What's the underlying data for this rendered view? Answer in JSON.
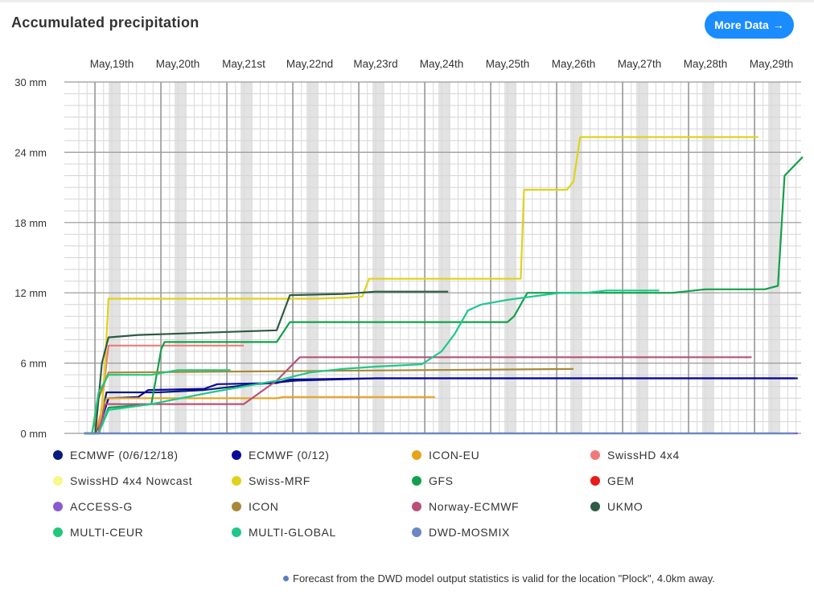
{
  "header": {
    "title": "Accumulated precipitation",
    "more_label": "More Data",
    "more_icon": "arrow-right-icon"
  },
  "footnote": {
    "text": "Forecast from the DWD model output statistics is valid for the location \"Plock\", 4.0km away.",
    "dot_color": "#5b7fbd"
  },
  "chart_data": {
    "type": "line",
    "title": "Accumulated precipitation",
    "xlabel": "",
    "ylabel": "",
    "x_unit": "days",
    "x_range": [
      -0.5,
      10.4
    ],
    "ylim": [
      0,
      30
    ],
    "y_ticks": [
      0,
      6,
      12,
      18,
      24,
      30
    ],
    "y_tick_labels": [
      "0 mm",
      "6 mm",
      "12 mm",
      "18 mm",
      "24 mm",
      "30 mm"
    ],
    "x_tick_labels": [
      "May,19th",
      "May,20th",
      "May,21st",
      "May,22nd",
      "May,23rd",
      "May,24th",
      "May,25th",
      "May,26th",
      "May,27th",
      "May,28th",
      "May,29th"
    ],
    "grid": true,
    "legend_position": "bottom",
    "series": [
      {
        "name": "ECMWF (0/6/12/18)",
        "color": "#0a1a7a",
        "points": [
          [
            -0.42,
            0
          ],
          [
            -0.2,
            0
          ],
          [
            -0.15,
            1.5
          ],
          [
            -0.08,
            3.5
          ],
          [
            0.7,
            3.5
          ],
          [
            1.4,
            3.7
          ],
          [
            2.0,
            4.1
          ],
          [
            2.8,
            4.5
          ],
          [
            4.0,
            4.7
          ],
          [
            10.4,
            4.7
          ]
        ]
      },
      {
        "name": "ECMWF (0/12)",
        "color": "#0a0a9a",
        "points": [
          [
            -0.42,
            0
          ],
          [
            -0.25,
            0
          ],
          [
            -0.15,
            1.2
          ],
          [
            -0.05,
            3.0
          ],
          [
            0.4,
            3.1
          ],
          [
            0.55,
            3.7
          ],
          [
            1.4,
            3.8
          ],
          [
            1.6,
            4.2
          ],
          [
            2.5,
            4.3
          ],
          [
            2.7,
            4.6
          ],
          [
            4.0,
            4.7
          ],
          [
            10.35,
            4.7
          ]
        ]
      },
      {
        "name": "ICON-EU",
        "color": "#e8a31c",
        "points": [
          [
            -0.42,
            0
          ],
          [
            -0.25,
            0
          ],
          [
            -0.15,
            2.0
          ],
          [
            -0.08,
            3.0
          ],
          [
            2.5,
            3.0
          ],
          [
            2.6,
            3.1
          ],
          [
            4.9,
            3.1
          ]
        ]
      },
      {
        "name": "SwissHD 4x4",
        "color": "#f07a78",
        "points": [
          [
            -0.42,
            0
          ],
          [
            -0.2,
            0
          ],
          [
            -0.12,
            4.0
          ],
          [
            -0.05,
            7.5
          ],
          [
            2.0,
            7.5
          ]
        ]
      },
      {
        "name": "SwissHD 4x4 Nowcast",
        "color": "#f7f78a",
        "points": []
      },
      {
        "name": "Swiss-MRF",
        "color": "#e0d21a",
        "points": [
          [
            -0.42,
            0
          ],
          [
            -0.18,
            0
          ],
          [
            -0.1,
            6.0
          ],
          [
            -0.05,
            11.5
          ],
          [
            3.1,
            11.5
          ],
          [
            3.6,
            11.6
          ],
          [
            3.8,
            11.7
          ],
          [
            3.9,
            13.2
          ],
          [
            6.2,
            13.2
          ],
          [
            6.25,
            20.8
          ],
          [
            6.9,
            20.8
          ],
          [
            7.0,
            21.5
          ],
          [
            7.1,
            25.3
          ],
          [
            9.8,
            25.3
          ]
        ]
      },
      {
        "name": "GFS",
        "color": "#13a04b",
        "points": [
          [
            -0.42,
            0
          ],
          [
            -0.2,
            0
          ],
          [
            -0.05,
            2.2
          ],
          [
            0.6,
            2.5
          ],
          [
            0.75,
            7.2
          ],
          [
            0.8,
            7.8
          ],
          [
            2.5,
            7.8
          ],
          [
            2.7,
            9.5
          ],
          [
            6.0,
            9.5
          ],
          [
            6.1,
            10.0
          ],
          [
            6.3,
            12.0
          ],
          [
            8.5,
            12.0
          ],
          [
            9.0,
            12.3
          ],
          [
            9.9,
            12.3
          ],
          [
            10.1,
            12.6
          ],
          [
            10.2,
            22.0
          ],
          [
            10.5,
            23.6
          ]
        ]
      },
      {
        "name": "GEM",
        "color": "#e81a1a",
        "points": []
      },
      {
        "name": "ACCESS-G",
        "color": "#8a5ad1",
        "points": [
          [
            -0.42,
            0
          ],
          [
            10.4,
            0
          ]
        ]
      },
      {
        "name": "ICON",
        "color": "#a8893a",
        "points": [
          [
            -0.42,
            0
          ],
          [
            -0.3,
            0
          ],
          [
            -0.2,
            3.0
          ],
          [
            -0.05,
            5.2
          ],
          [
            7.0,
            5.5
          ]
        ]
      },
      {
        "name": "Norway-ECMWF",
        "color": "#b8517a",
        "points": [
          [
            -0.42,
            0
          ],
          [
            -0.2,
            0
          ],
          [
            -0.1,
            2.5
          ],
          [
            2.0,
            2.5
          ],
          [
            2.5,
            4.5
          ],
          [
            2.85,
            6.5
          ],
          [
            9.7,
            6.5
          ]
        ]
      },
      {
        "name": "UKMO",
        "color": "#2f5a44",
        "points": [
          [
            -0.42,
            0
          ],
          [
            -0.25,
            0
          ],
          [
            -0.15,
            6.0
          ],
          [
            -0.05,
            8.2
          ],
          [
            0.4,
            8.4
          ],
          [
            2.5,
            8.8
          ],
          [
            2.7,
            11.8
          ],
          [
            3.5,
            11.9
          ],
          [
            4.0,
            12.1
          ],
          [
            5.1,
            12.1
          ]
        ]
      },
      {
        "name": "MULTI-CEUR",
        "color": "#22c77a",
        "points": [
          [
            -0.42,
            0
          ],
          [
            -0.3,
            0
          ],
          [
            -0.2,
            3.5
          ],
          [
            -0.05,
            5.0
          ],
          [
            0.6,
            5.0
          ],
          [
            1.0,
            5.4
          ],
          [
            1.8,
            5.4
          ]
        ]
      },
      {
        "name": "MULTI-GLOBAL",
        "color": "#1ec88a",
        "points": [
          [
            -0.42,
            0
          ],
          [
            -0.2,
            0
          ],
          [
            -0.05,
            2.0
          ],
          [
            0.6,
            2.5
          ],
          [
            1.5,
            3.5
          ],
          [
            2.5,
            4.5
          ],
          [
            3.0,
            5.2
          ],
          [
            3.5,
            5.5
          ],
          [
            4.0,
            5.7
          ],
          [
            4.7,
            5.9
          ],
          [
            5.0,
            7.0
          ],
          [
            5.2,
            8.5
          ],
          [
            5.4,
            10.5
          ],
          [
            5.6,
            11.0
          ],
          [
            6.0,
            11.4
          ],
          [
            6.8,
            12.0
          ],
          [
            7.2,
            12.0
          ],
          [
            7.5,
            12.2
          ],
          [
            8.3,
            12.2
          ]
        ]
      },
      {
        "name": "DWD-MOSMIX",
        "color": "#6b87c4",
        "points": [
          [
            -0.42,
            0
          ],
          [
            10.35,
            0
          ]
        ]
      }
    ]
  }
}
